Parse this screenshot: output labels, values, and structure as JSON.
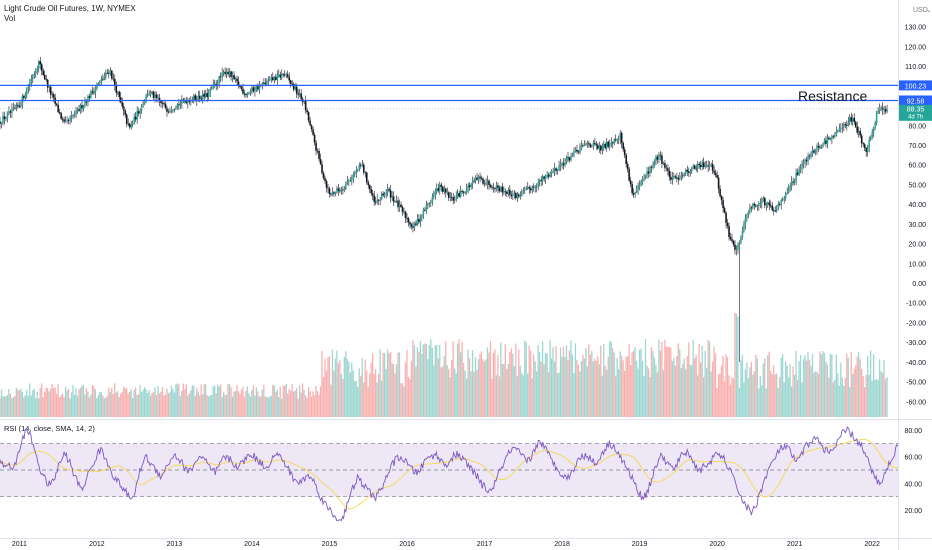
{
  "header": {
    "title": "Light Crude Oil Futures, 1W, NYMEX",
    "vol_label": "Vol",
    "currency": "USD"
  },
  "colors": {
    "up": "#26a69a",
    "down": "#ef5350",
    "line": "#2962ff",
    "rsi": "#7e57c2",
    "rsi_ma": "#f5d94e",
    "band": "#ede7f6",
    "tag_green": "#26a69a"
  },
  "chart_data": [
    {
      "type": "candlestick",
      "title": "Light Crude Oil Futures, 1W, NYMEX",
      "ylim": [
        -65,
        140
      ],
      "y_ticks": [
        130,
        120,
        110,
        100,
        90,
        80,
        70,
        60,
        50,
        40,
        30,
        20,
        10,
        0,
        -10,
        -20,
        -30,
        -40,
        -50,
        -60
      ],
      "x_ticks": [
        "2011",
        "2012",
        "2013",
        "2014",
        "2015",
        "2016",
        "2017",
        "2018",
        "2019",
        "2020",
        "2021",
        "2022"
      ],
      "price_path": [
        [
          "2010-10",
          82
        ],
        [
          "2011-01",
          90
        ],
        [
          "2011-04",
          112
        ],
        [
          "2011-06",
          95
        ],
        [
          "2011-08",
          80
        ],
        [
          "2011-10",
          87
        ],
        [
          "2012-01",
          100
        ],
        [
          "2012-03",
          108
        ],
        [
          "2012-06",
          78
        ],
        [
          "2012-09",
          97
        ],
        [
          "2012-12",
          88
        ],
        [
          "2013-03",
          93
        ],
        [
          "2013-06",
          95
        ],
        [
          "2013-09",
          108
        ],
        [
          "2013-12",
          96
        ],
        [
          "2014-04",
          103
        ],
        [
          "2014-06",
          106
        ],
        [
          "2014-09",
          92
        ],
        [
          "2014-12",
          55
        ],
        [
          "2015-01",
          45
        ],
        [
          "2015-03",
          48
        ],
        [
          "2015-06",
          60
        ],
        [
          "2015-08",
          40
        ],
        [
          "2015-10",
          47
        ],
        [
          "2016-02",
          28
        ],
        [
          "2016-06",
          49
        ],
        [
          "2016-08",
          42
        ],
        [
          "2016-12",
          53
        ],
        [
          "2017-06",
          44
        ],
        [
          "2017-09",
          50
        ],
        [
          "2017-12",
          58
        ],
        [
          "2018-05",
          71
        ],
        [
          "2018-07",
          68
        ],
        [
          "2018-10",
          75
        ],
        [
          "2018-12",
          44
        ],
        [
          "2019-04",
          65
        ],
        [
          "2019-06",
          52
        ],
        [
          "2019-09",
          58
        ],
        [
          "2019-12",
          61
        ],
        [
          "2020-01",
          52
        ],
        [
          "2020-03",
          22
        ],
        [
          "2020-04",
          17
        ],
        [
          "2020-06",
          38
        ],
        [
          "2020-08",
          42
        ],
        [
          "2020-10",
          36
        ],
        [
          "2020-12",
          48
        ],
        [
          "2021-03",
          64
        ],
        [
          "2021-07",
          75
        ],
        [
          "2021-10",
          84
        ],
        [
          "2021-12",
          66
        ],
        [
          "2022-02",
          88
        ]
      ],
      "spike_low": {
        "date": "2020-04",
        "value": -40
      },
      "volume_peak_date": "2020-04",
      "horizontal_lines": [
        {
          "value": 100.23,
          "label": "100.23"
        },
        {
          "value": 92.58,
          "label": "92.58"
        }
      ],
      "reference_line": 88.35,
      "price_tag": {
        "value": "88.35",
        "countdown": "4d 7h"
      },
      "annotation": "Resistance"
    },
    {
      "type": "line",
      "title": "RSI (14, close, SMA, 14, 2)",
      "ylim": [
        10,
        85
      ],
      "y_ticks": [
        80,
        60,
        40,
        20
      ],
      "bands": [
        30,
        50,
        70
      ],
      "series": [
        {
          "name": "RSI",
          "values": [
            58,
            52,
            55,
            50,
            62,
            75,
            80,
            72,
            60,
            48,
            42,
            38,
            45,
            55,
            62,
            58,
            48,
            40,
            36,
            45,
            52,
            60,
            66,
            58,
            52,
            44,
            40,
            36,
            30,
            28,
            42,
            55,
            60,
            54,
            50,
            46,
            50,
            56,
            62,
            58,
            54,
            48,
            52,
            58,
            60,
            56,
            50,
            48,
            54,
            60,
            58,
            55,
            52,
            56,
            60,
            62,
            58,
            55,
            52,
            56,
            62,
            60,
            56,
            50,
            44,
            40,
            42,
            46,
            44,
            38,
            30,
            24,
            20,
            15,
            12,
            16,
            26,
            36,
            44,
            40,
            36,
            32,
            30,
            34,
            42,
            50,
            56,
            60,
            58,
            54,
            50,
            48,
            52,
            58,
            60,
            62,
            58,
            54,
            56,
            60,
            62,
            58,
            54,
            50,
            46,
            40,
            36,
            34,
            40,
            48,
            56,
            62,
            66,
            64,
            60,
            56,
            60,
            68,
            72,
            66,
            60,
            54,
            50,
            46,
            44,
            50,
            56,
            60,
            62,
            58,
            54,
            60,
            66,
            70,
            68,
            62,
            56,
            50,
            44,
            36,
            30,
            32,
            40,
            52,
            60,
            58,
            54,
            50,
            56,
            62,
            64,
            58,
            52,
            50,
            54,
            56,
            60,
            62,
            58,
            52,
            44,
            36,
            28,
            22,
            18,
            24,
            34,
            44,
            52,
            58,
            64,
            68,
            66,
            60,
            56,
            62,
            68,
            72,
            74,
            70,
            66,
            62,
            66,
            72,
            78,
            80,
            76,
            72,
            68,
            60,
            52,
            44,
            40,
            46,
            54,
            62,
            68
          ]
        }
      ]
    }
  ]
}
